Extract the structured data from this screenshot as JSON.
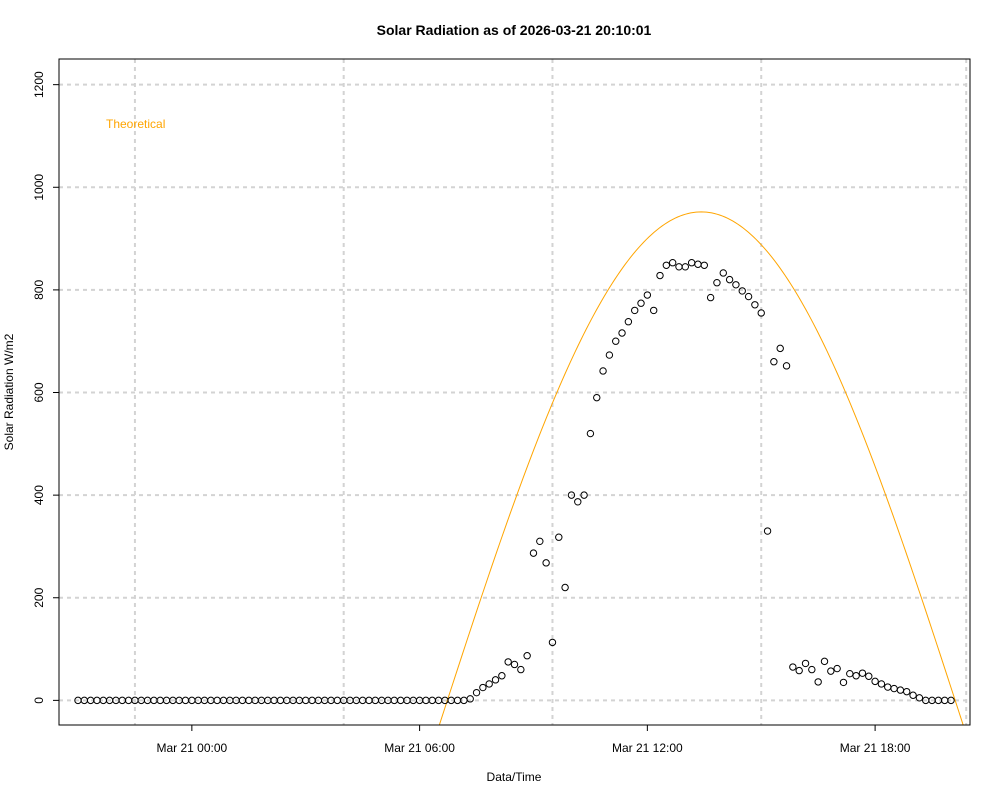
{
  "chart_data": {
    "type": "scatter",
    "title": "Solar Radiation as of 2026-03-21 20:10:01",
    "xlabel": "Data/Time",
    "ylabel": "Solar Radiation W/m2",
    "x_unit": "hours since Mar 21 00:00",
    "xlim": [
      -3.5,
      20.5
    ],
    "ylim": [
      -48,
      1250
    ],
    "x_ticks": [
      {
        "value": 0,
        "label": "Mar 21 00:00"
      },
      {
        "value": 6,
        "label": "Mar 21 06:00"
      },
      {
        "value": 12,
        "label": "Mar 21 12:00"
      },
      {
        "value": 18,
        "label": "Mar 21 18:00"
      }
    ],
    "y_ticks": [
      {
        "value": 0,
        "label": "0"
      },
      {
        "value": 200,
        "label": "200"
      },
      {
        "value": 400,
        "label": "400"
      },
      {
        "value": 600,
        "label": "600"
      },
      {
        "value": 800,
        "label": "800"
      },
      {
        "value": 1000,
        "label": "1000"
      },
      {
        "value": 1200,
        "label": "1200"
      }
    ],
    "grid": true,
    "grid_x": [
      -1.5,
      4.0,
      9.5,
      15.0,
      20.4
    ],
    "legend": {
      "placement": "top-left",
      "entries": [
        {
          "label": "Theoretical",
          "color": "#ffa500"
        }
      ]
    },
    "series": [
      {
        "name": "",
        "kind": "points",
        "color": "#000000",
        "points": [
          [
            -3.0,
            0
          ],
          [
            -2.833,
            0
          ],
          [
            -2.667,
            0
          ],
          [
            -2.5,
            0
          ],
          [
            -2.333,
            0
          ],
          [
            -2.167,
            0
          ],
          [
            -2.0,
            0
          ],
          [
            -1.833,
            0
          ],
          [
            -1.667,
            0
          ],
          [
            -1.5,
            0
          ],
          [
            -1.333,
            0
          ],
          [
            -1.167,
            0
          ],
          [
            -1.0,
            0
          ],
          [
            -0.833,
            0
          ],
          [
            -0.667,
            0
          ],
          [
            -0.5,
            0
          ],
          [
            -0.333,
            0
          ],
          [
            -0.167,
            0
          ],
          [
            0.0,
            0
          ],
          [
            0.167,
            0
          ],
          [
            0.333,
            0
          ],
          [
            0.5,
            0
          ],
          [
            0.667,
            0
          ],
          [
            0.833,
            0
          ],
          [
            1.0,
            0
          ],
          [
            1.167,
            0
          ],
          [
            1.333,
            0
          ],
          [
            1.5,
            0
          ],
          [
            1.667,
            0
          ],
          [
            1.833,
            0
          ],
          [
            2.0,
            0
          ],
          [
            2.167,
            0
          ],
          [
            2.333,
            0
          ],
          [
            2.5,
            0
          ],
          [
            2.667,
            0
          ],
          [
            2.833,
            0
          ],
          [
            3.0,
            0
          ],
          [
            3.167,
            0
          ],
          [
            3.333,
            0
          ],
          [
            3.5,
            0
          ],
          [
            3.667,
            0
          ],
          [
            3.833,
            0
          ],
          [
            4.0,
            0
          ],
          [
            4.167,
            0
          ],
          [
            4.333,
            0
          ],
          [
            4.5,
            0
          ],
          [
            4.667,
            0
          ],
          [
            4.833,
            0
          ],
          [
            5.0,
            0
          ],
          [
            5.167,
            0
          ],
          [
            5.333,
            0
          ],
          [
            5.5,
            0
          ],
          [
            5.667,
            0
          ],
          [
            5.833,
            0
          ],
          [
            6.0,
            0
          ],
          [
            6.167,
            0
          ],
          [
            6.333,
            0
          ],
          [
            6.5,
            0
          ],
          [
            6.667,
            0
          ],
          [
            6.833,
            0
          ],
          [
            7.0,
            0
          ],
          [
            7.167,
            0
          ],
          [
            7.333,
            3
          ],
          [
            7.5,
            15
          ],
          [
            7.667,
            25
          ],
          [
            7.833,
            32
          ],
          [
            8.0,
            40
          ],
          [
            8.167,
            48
          ],
          [
            8.333,
            75
          ],
          [
            8.5,
            70
          ],
          [
            8.667,
            60
          ],
          [
            8.833,
            87
          ],
          [
            9.0,
            287
          ],
          [
            9.167,
            310
          ],
          [
            9.333,
            268
          ],
          [
            9.5,
            113
          ],
          [
            9.667,
            318
          ],
          [
            9.833,
            220
          ],
          [
            10.0,
            400
          ],
          [
            10.167,
            387
          ],
          [
            10.333,
            400
          ],
          [
            10.5,
            520
          ],
          [
            10.667,
            590
          ],
          [
            10.833,
            642
          ],
          [
            11.0,
            673
          ],
          [
            11.167,
            700
          ],
          [
            11.333,
            716
          ],
          [
            11.5,
            738
          ],
          [
            11.667,
            760
          ],
          [
            11.833,
            774
          ],
          [
            12.0,
            790
          ],
          [
            12.167,
            760
          ],
          [
            12.333,
            828
          ],
          [
            12.5,
            848
          ],
          [
            12.667,
            853
          ],
          [
            12.833,
            845
          ],
          [
            13.0,
            845
          ],
          [
            13.167,
            853
          ],
          [
            13.333,
            850
          ],
          [
            13.5,
            848
          ],
          [
            13.667,
            785
          ],
          [
            13.833,
            814
          ],
          [
            14.0,
            833
          ],
          [
            14.167,
            820
          ],
          [
            14.333,
            810
          ],
          [
            14.5,
            798
          ],
          [
            14.667,
            787
          ],
          [
            14.833,
            771
          ],
          [
            15.0,
            755
          ],
          [
            15.167,
            330
          ],
          [
            15.333,
            660
          ],
          [
            15.5,
            686
          ],
          [
            15.667,
            652
          ],
          [
            15.833,
            65
          ],
          [
            16.0,
            58
          ],
          [
            16.167,
            72
          ],
          [
            16.333,
            60
          ],
          [
            16.5,
            36
          ],
          [
            16.667,
            76
          ],
          [
            16.833,
            57
          ],
          [
            17.0,
            62
          ],
          [
            17.167,
            35
          ],
          [
            17.333,
            52
          ],
          [
            17.5,
            48
          ],
          [
            17.667,
            53
          ],
          [
            17.833,
            47
          ],
          [
            18.0,
            37
          ],
          [
            18.167,
            32
          ],
          [
            18.333,
            26
          ],
          [
            18.5,
            23
          ],
          [
            18.667,
            20
          ],
          [
            18.833,
            17
          ],
          [
            19.0,
            10
          ],
          [
            19.167,
            5
          ],
          [
            19.333,
            0
          ],
          [
            19.5,
            0
          ],
          [
            19.667,
            0
          ],
          [
            19.833,
            0
          ],
          [
            20.0,
            0
          ]
        ]
      },
      {
        "name": "Theoretical",
        "kind": "curve",
        "color": "#ffa500",
        "curve": {
          "peak_x": 13.42,
          "peak_y": 952,
          "half_width": 6.9,
          "y_min": -48
        }
      }
    ]
  }
}
